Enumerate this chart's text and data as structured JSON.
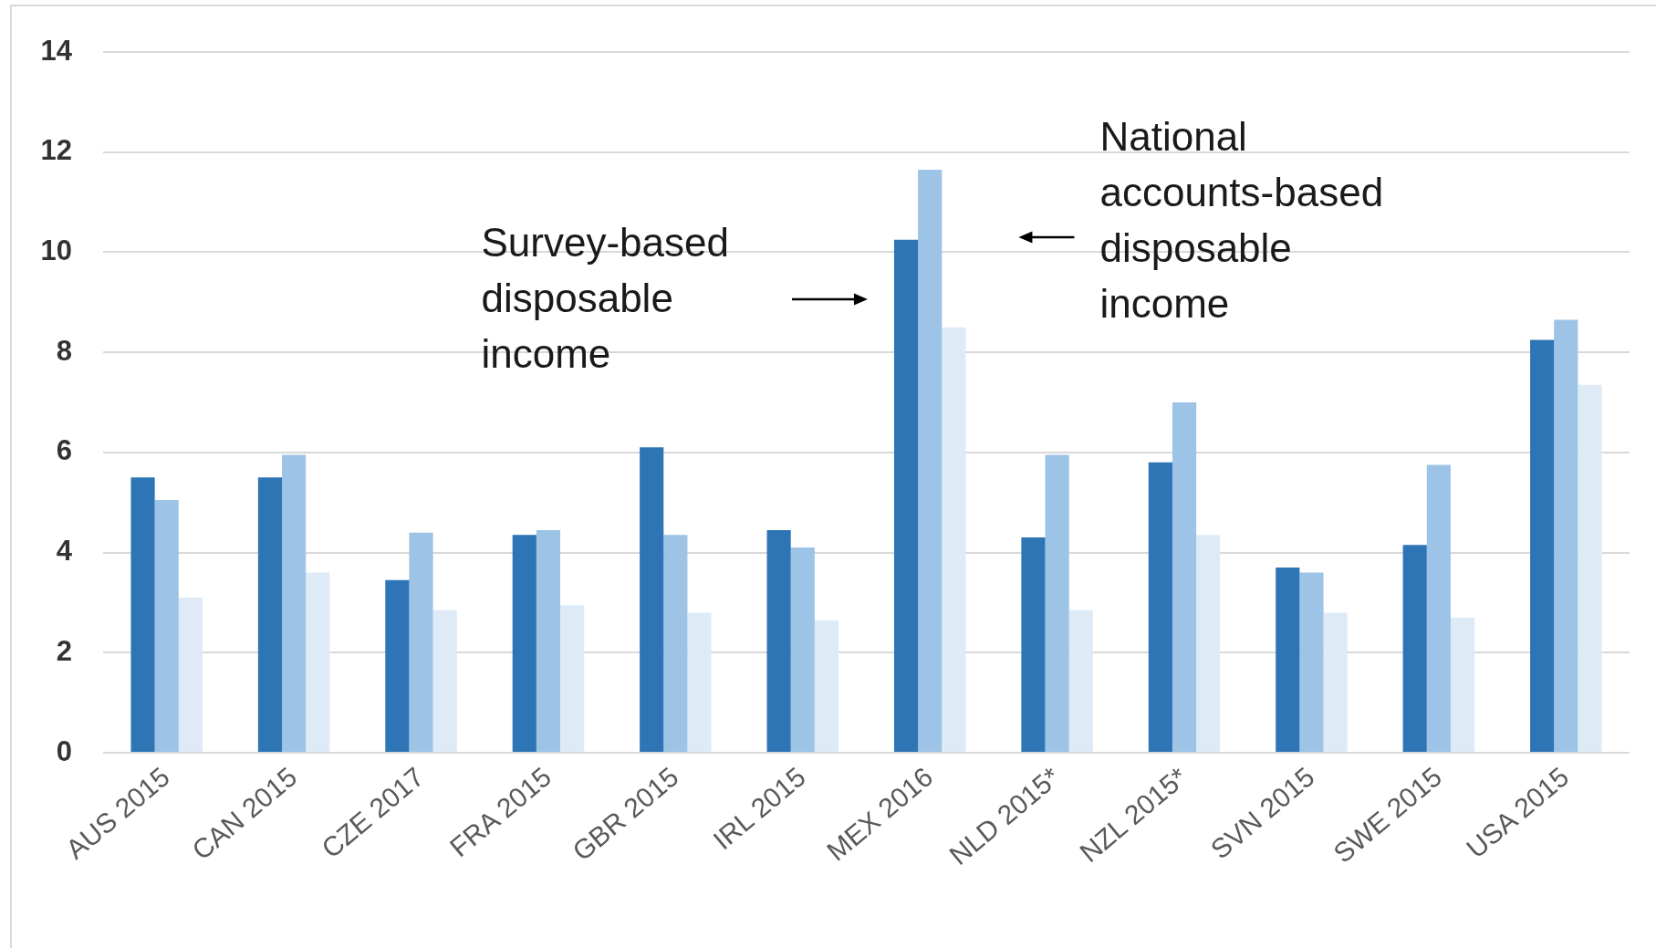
{
  "chart_data": {
    "type": "bar",
    "categories": [
      "AUS 2015",
      "CAN 2015",
      "CZE 2017",
      "FRA 2015",
      "GBR 2015",
      "IRL 2015",
      "MEX 2016",
      "NLD 2015*",
      "NZL 2015*",
      "SVN 2015",
      "SWE 2015",
      "USA 2015"
    ],
    "series": [
      {
        "color": "#2e75b6",
        "values": [
          5.5,
          5.5,
          3.45,
          4.35,
          6.1,
          4.45,
          10.25,
          4.3,
          5.8,
          3.7,
          4.15,
          8.25
        ]
      },
      {
        "color": "#9dc3e6",
        "values": [
          5.05,
          5.95,
          4.4,
          4.45,
          4.35,
          4.1,
          11.65,
          5.95,
          7.0,
          3.6,
          5.75,
          8.65
        ]
      },
      {
        "color": "#deebf7",
        "values": [
          3.1,
          3.6,
          2.85,
          2.95,
          2.8,
          2.65,
          8.5,
          2.85,
          4.35,
          2.8,
          2.7,
          7.35
        ]
      }
    ],
    "ylim": [
      0,
      14
    ],
    "yticks": [
      0,
      2,
      4,
      6,
      8,
      10,
      12,
      14
    ],
    "grid": "y",
    "annotations": [
      "Survey-based disposable income",
      "National accounts-based disposable income"
    ]
  }
}
